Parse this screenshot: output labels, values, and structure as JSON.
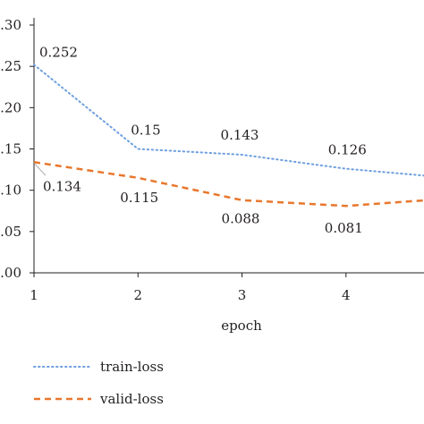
{
  "chart_data": {
    "type": "line",
    "x": [
      1,
      2,
      3,
      4,
      5
    ],
    "xticks": [
      "1",
      "2",
      "3",
      "4"
    ],
    "yticks": [
      ".00",
      ".05",
      ".10",
      ".15",
      ".20",
      ".25",
      ".30"
    ],
    "ylim": [
      0,
      0.3
    ],
    "xlim": [
      1,
      4.75
    ],
    "xlabel": "epoch",
    "ylabel": "",
    "grid": false,
    "legend_position": "bottom-left",
    "series": [
      {
        "name": "train-loss",
        "color": "#6f9fe0",
        "style": "dotted",
        "values": [
          0.252,
          0.15,
          0.143,
          0.126,
          0.115
        ],
        "labels": [
          "0.252",
          "0.15",
          "0.143",
          "0.126",
          null
        ]
      },
      {
        "name": "valid-loss",
        "color": "#e8772d",
        "style": "dashed",
        "values": [
          0.134,
          0.115,
          0.088,
          0.081,
          0.09
        ],
        "labels": [
          "0.134",
          "0.115",
          "0.088",
          "0.081",
          null
        ]
      }
    ]
  }
}
